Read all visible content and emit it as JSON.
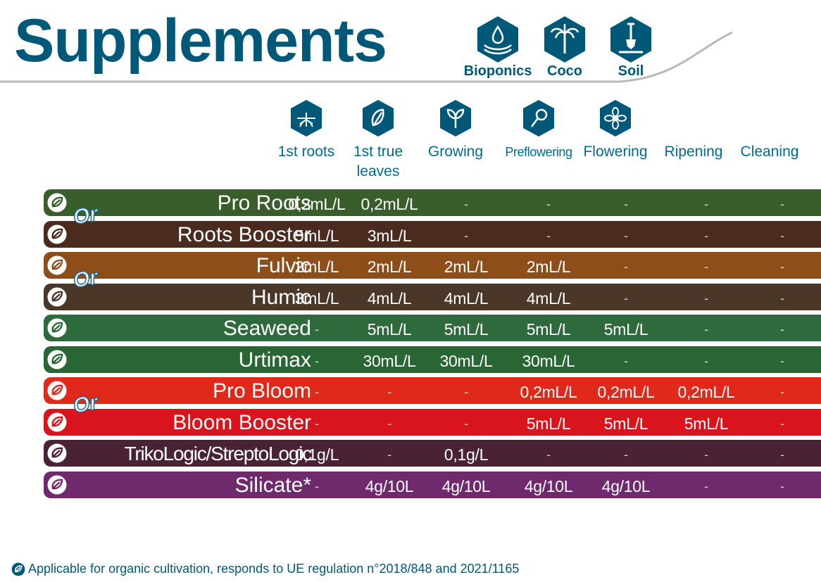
{
  "header": {
    "title": "Supplements",
    "media": [
      {
        "label": "Bioponics",
        "icon": "hand-drop-icon"
      },
      {
        "label": "Coco",
        "icon": "palm-tree-icon"
      },
      {
        "label": "Soil",
        "icon": "shovel-icon"
      }
    ],
    "accent_color": "#005879"
  },
  "stages": [
    {
      "label": "1st roots",
      "icon": "roots-icon"
    },
    {
      "label": "1st true leaves",
      "icon": "leaf-icon"
    },
    {
      "label": "Growing",
      "icon": "sprout-icon"
    },
    {
      "label": "Preflowering",
      "icon": "bud-icon"
    },
    {
      "label": "Flowering",
      "icon": "flower-icon"
    },
    {
      "label": "Ripening",
      "icon": ""
    },
    {
      "label": "Cleaning",
      "icon": ""
    }
  ],
  "or_label": "Or",
  "products": [
    {
      "name": "Pro Roots",
      "color": "#3a5e2b",
      "values": [
        "0,2mL/L",
        "0,2mL/L",
        "-",
        "-",
        "-",
        "-",
        "-"
      ]
    },
    {
      "name": "Roots Booster",
      "color": "#4b2b1e",
      "values": [
        "5mL/L",
        "3mL/L",
        "-",
        "-",
        "-",
        "-",
        "-"
      ]
    },
    {
      "name": "Fulvic",
      "color": "#8e4e1a",
      "values": [
        "2mL/L",
        "2mL/L",
        "2mL/L",
        "2mL/L",
        "-",
        "-",
        "-"
      ]
    },
    {
      "name": "Humic",
      "color": "#4a3728",
      "values": [
        "3mL/L",
        "4mL/L",
        "4mL/L",
        "4mL/L",
        "-",
        "-",
        "-"
      ]
    },
    {
      "name": "Seaweed",
      "color": "#2e6a3c",
      "values": [
        "-",
        "5mL/L",
        "5mL/L",
        "5mL/L",
        "5mL/L",
        "-",
        "-"
      ]
    },
    {
      "name": "Urtimax",
      "color": "#2a6634",
      "values": [
        "-",
        "30mL/L",
        "30mL/L",
        "30mL/L",
        "-",
        "-",
        "-"
      ]
    },
    {
      "name": "Pro Bloom",
      "color": "#e0291b",
      "values": [
        "-",
        "-",
        "-",
        "0,2mL/L",
        "0,2mL/L",
        "0,2mL/L",
        "-"
      ]
    },
    {
      "name": "Bloom Booster",
      "color": "#d9141c",
      "values": [
        "-",
        "-",
        "-",
        "5mL/L",
        "5mL/L",
        "5mL/L",
        "-"
      ]
    },
    {
      "name": "TrikoLogic/StreptoLogic",
      "color": "#4a2235",
      "values": [
        "0,1g/L",
        "-",
        "0,1g/L",
        "-",
        "-",
        "-",
        "-"
      ]
    },
    {
      "name": "Silicate*",
      "color": "#6e2a6c",
      "values": [
        "-",
        "4g/10L",
        "4g/10L",
        "4g/10L",
        "4g/10L",
        "-",
        "-"
      ]
    }
  ],
  "footnote": "Applicable for organic cultivation, responds to UE regulation n°2018/848 and 2021/1165"
}
